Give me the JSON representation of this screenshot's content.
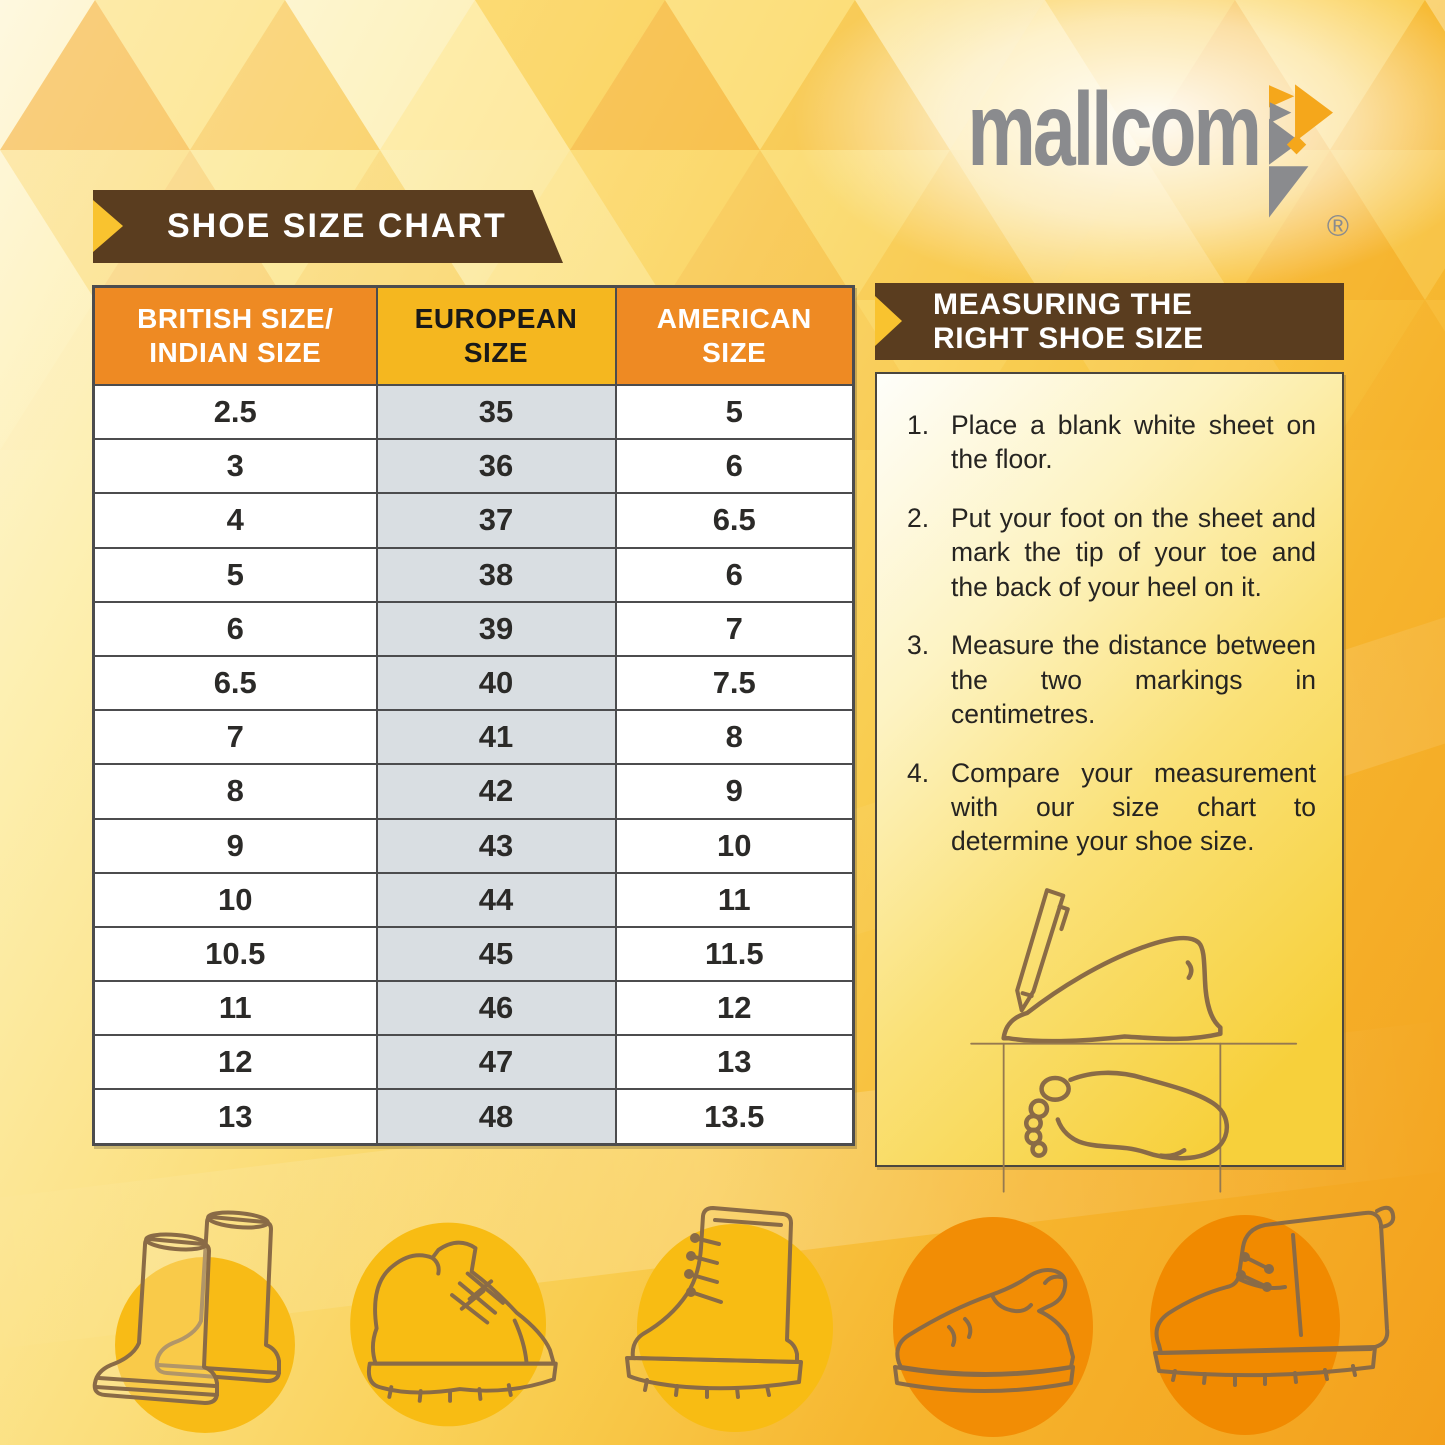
{
  "brand": {
    "name": "mallcom",
    "registered": "®"
  },
  "banner": {
    "label": "SHOE SIZE CHART"
  },
  "size_table": {
    "headers": [
      {
        "line1": "BRITISH SIZE/",
        "line2": "INDIAN SIZE"
      },
      {
        "line1": "EUROPEAN",
        "line2": "SIZE"
      },
      {
        "line1": "AMERICAN",
        "line2": "SIZE"
      }
    ],
    "rows": [
      [
        "2.5",
        "35",
        "5"
      ],
      [
        "3",
        "36",
        "6"
      ],
      [
        "4",
        "37",
        "6.5"
      ],
      [
        "5",
        "38",
        "6"
      ],
      [
        "6",
        "39",
        "7"
      ],
      [
        "6.5",
        "40",
        "7.5"
      ],
      [
        "7",
        "41",
        "8"
      ],
      [
        "8",
        "42",
        "9"
      ],
      [
        "9",
        "43",
        "10"
      ],
      [
        "10",
        "44",
        "11"
      ],
      [
        "10.5",
        "45",
        "11.5"
      ],
      [
        "11",
        "46",
        "12"
      ],
      [
        "12",
        "47",
        "13"
      ],
      [
        "13",
        "48",
        "13.5"
      ]
    ]
  },
  "measuring_panel": {
    "title_line1": "MEASURING THE",
    "title_line2": "RIGHT SHOE SIZE",
    "steps": [
      {
        "num": "1.",
        "text": "Place a blank white sheet on the floor."
      },
      {
        "num": "2.",
        "text": "Put your foot on the sheet and mark the tip of your toe and the back of your heel on it."
      },
      {
        "num": "3.",
        "text": "Measure the distance between the two markings in centimetres."
      },
      {
        "num": "4.",
        "text": "Compare your measurement with our size chart to determine your shoe size."
      }
    ],
    "illustration_icon": "foot-measuring-illustration"
  },
  "shoe_gallery": [
    {
      "icon": "rubber-boots-illustration"
    },
    {
      "icon": "safety-shoe-illustration"
    },
    {
      "icon": "lace-up-boot-illustration"
    },
    {
      "icon": "slip-on-shoe-illustration"
    },
    {
      "icon": "chukka-boot-illustration"
    }
  ],
  "colors": {
    "header_orange": "#EE8A23",
    "header_gold": "#F5B71F",
    "banner_brown": "#5A3D1F",
    "accent_triangle_yellow": "#F9C32F",
    "euro_column_bg": "#D9DEE2",
    "logo_gray": "#8A8B8E",
    "logo_orange": "#F5A71B",
    "line_art_brown": "#8A6B46",
    "gallery_circle_gold": "#F8BC13",
    "gallery_circle_orange": "#F18A00"
  }
}
